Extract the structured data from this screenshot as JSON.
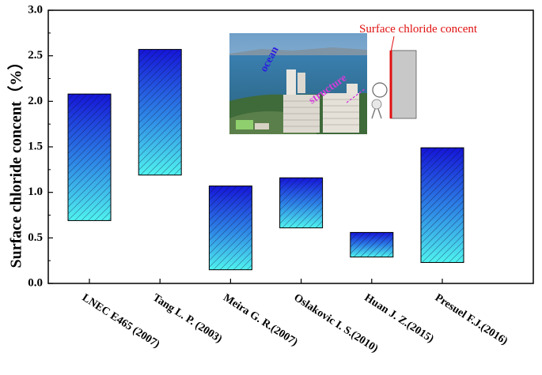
{
  "chart_data": {
    "type": "floating-bar",
    "ylabel": "Surface chloride concent（%）",
    "ylim": [
      0,
      3.0
    ],
    "yticks": [
      "0.0",
      "0.5",
      "1.0",
      "1.5",
      "2.0",
      "2.5",
      "3.0"
    ],
    "categories": [
      "LNEC E465 (2007)",
      "Tang L. P.  (2003)",
      "Meira G. R.(2007)",
      "Oslakovic I. S.(2010)",
      "Huan J. Z.(2015)",
      "Presuel F.J.(2016)"
    ],
    "ranges": [
      [
        0.69,
        2.08
      ],
      [
        1.19,
        2.57
      ],
      [
        0.15,
        1.07
      ],
      [
        0.61,
        1.16
      ],
      [
        0.29,
        0.56
      ],
      [
        0.23,
        1.49
      ]
    ],
    "fill": "gradient blue-to-cyan with diagonal hatching",
    "colors": {
      "top": "#1a1adc",
      "bottom": "#49f0ee",
      "hatch": "#1a1a50"
    },
    "grid": false,
    "legend": "none",
    "inset": {
      "ocean_label": "ocean",
      "structure_label": "structure",
      "annotation": "Surface chloride concent"
    }
  }
}
